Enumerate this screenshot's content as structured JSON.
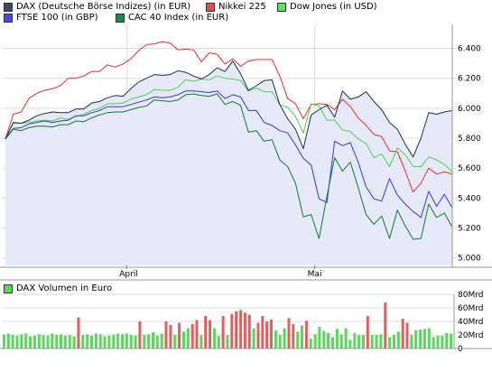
{
  "chart_data": [
    {
      "type": "line",
      "legend_position": "top-left",
      "grid": true,
      "x_ticks": [
        "April",
        "Mai"
      ],
      "y_ticks": [
        "5.000",
        "5.200",
        "5.400",
        "5.600",
        "5.800",
        "6.000",
        "6.200",
        "6.400"
      ],
      "ylim": [
        4950,
        6560
      ],
      "background_series": "DAX (Deutsche Börse Indizes) (in EUR)",
      "series": [
        {
          "name": "DAX (Deutsche Börse Indizes) (in EUR)",
          "color": "#1f2f4f",
          "swatch": "#3a4a6a",
          "values": [
            5795,
            5905,
            5900,
            5920,
            5950,
            5965,
            5975,
            5970,
            5970,
            5995,
            5995,
            6035,
            6045,
            6070,
            6085,
            6080,
            6130,
            6175,
            6200,
            6225,
            6220,
            6225,
            6250,
            6240,
            6215,
            6195,
            6225,
            6270,
            6245,
            6315,
            6230,
            6120,
            6150,
            6185,
            6190,
            6025,
            5930,
            5860,
            5730,
            5955,
            5990,
            6020,
            5940,
            6115,
            6060,
            6075,
            6110,
            6045,
            5990,
            5905,
            5860,
            5760,
            5675,
            5800,
            5970,
            5960,
            5975,
            5985
          ]
        },
        {
          "name": "Nikkei 225",
          "color": "#e03030",
          "swatch": "#e05050",
          "values": [
            5795,
            5960,
            5975,
            6065,
            6100,
            6120,
            6130,
            6150,
            6200,
            6200,
            6215,
            6245,
            6245,
            6290,
            6275,
            6295,
            6330,
            6385,
            6425,
            6430,
            6445,
            6435,
            6390,
            6395,
            6390,
            6310,
            6370,
            6360,
            6295,
            6330,
            6280,
            6315,
            6325,
            6325,
            6325,
            6215,
            6065,
            6030,
            5930,
            6025,
            6030,
            6025,
            5990,
            6060,
            6010,
            5935,
            5885,
            5825,
            5810,
            5715,
            5710,
            5580,
            5440,
            5500,
            5600,
            5560,
            5575,
            5560
          ]
        },
        {
          "name": "Dow Jones (in USD)",
          "color": "#50d050",
          "swatch": "#66dd66",
          "values": [
            5795,
            5900,
            5900,
            5905,
            5915,
            5920,
            5915,
            5935,
            5925,
            5945,
            5960,
            5985,
            6000,
            6030,
            6030,
            6035,
            6060,
            6075,
            6090,
            6125,
            6120,
            6120,
            6140,
            6190,
            6180,
            6195,
            6190,
            6215,
            6200,
            6195,
            6185,
            6115,
            6135,
            6110,
            6110,
            6025,
            6005,
            5945,
            5835,
            6030,
            6015,
            5920,
            5920,
            5855,
            5845,
            5795,
            5765,
            5670,
            5695,
            5610,
            5735,
            5690,
            5610,
            5610,
            5675,
            5655,
            5625,
            5575
          ]
        },
        {
          "name": "FTSE 100 (in GBP)",
          "color": "#3838d0",
          "swatch": "#4a4ae0",
          "values": [
            5795,
            5865,
            5870,
            5895,
            5905,
            5915,
            5905,
            5915,
            5920,
            5950,
            5950,
            5970,
            5985,
            6010,
            6010,
            6010,
            6025,
            6040,
            6055,
            6075,
            6070,
            6075,
            6090,
            6115,
            6115,
            6110,
            6105,
            6115,
            6065,
            6090,
            6075,
            5985,
            5985,
            5905,
            5885,
            5850,
            5835,
            5755,
            5665,
            5620,
            5395,
            5370,
            5780,
            5750,
            5770,
            5640,
            5475,
            5395,
            5380,
            5530,
            5420,
            5360,
            5310,
            5270,
            5445,
            5345,
            5425,
            5335
          ]
        },
        {
          "name": "CAC 40 Index (in EUR)",
          "color": "#107838",
          "swatch": "#1a8a48",
          "values": [
            5795,
            5860,
            5850,
            5870,
            5880,
            5880,
            5875,
            5890,
            5890,
            5915,
            5910,
            5935,
            5955,
            5970,
            5975,
            5975,
            5990,
            6005,
            6015,
            6055,
            6050,
            6045,
            6055,
            6090,
            6095,
            6085,
            6080,
            6095,
            6025,
            6045,
            6020,
            5840,
            5850,
            5780,
            5790,
            5655,
            5610,
            5500,
            5275,
            5290,
            5130,
            5410,
            5670,
            5580,
            5640,
            5470,
            5290,
            5225,
            5280,
            5130,
            5320,
            5215,
            5125,
            5130,
            5360,
            5270,
            5300,
            5205
          ]
        }
      ]
    },
    {
      "type": "bar",
      "legend_position": "top-left",
      "series": [
        {
          "name": "DAX Volumen in Euro",
          "color": "#5cd65c",
          "high_color": "#e06060",
          "values": [
            21,
            22,
            20,
            19,
            21,
            22,
            18,
            19,
            21,
            20,
            19,
            22,
            20,
            21,
            19,
            20,
            18,
            46,
            20,
            21,
            19,
            22,
            21,
            18,
            19,
            20,
            22,
            21,
            22,
            20,
            19,
            40,
            20,
            21,
            24,
            19,
            22,
            40,
            35,
            20,
            38,
            25,
            30,
            36,
            42,
            20,
            48,
            42,
            30,
            19,
            48,
            20,
            51,
            55,
            57,
            53,
            50,
            30,
            38,
            48,
            40,
            43,
            27,
            20,
            30,
            45,
            36,
            25,
            34,
            41,
            15,
            21,
            32,
            26,
            23,
            17,
            29,
            21,
            30,
            13,
            23,
            20,
            20,
            48,
            20,
            20,
            21,
            68,
            17,
            20,
            25,
            44,
            38,
            20,
            27,
            28,
            29,
            30,
            17,
            19,
            19,
            23,
            22
          ]
        }
      ],
      "high_series_index": 1,
      "y_ticks": [
        "0",
        "20Mrd",
        "40Mrd",
        "60Mrd",
        "80Mrd"
      ],
      "ylim": [
        0,
        80
      ],
      "x_ticks": []
    }
  ]
}
